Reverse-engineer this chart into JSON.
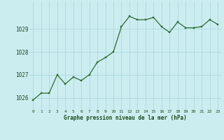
{
  "x": [
    0,
    1,
    2,
    3,
    4,
    5,
    6,
    7,
    8,
    9,
    10,
    11,
    12,
    13,
    14,
    15,
    16,
    17,
    18,
    19,
    20,
    21,
    22,
    23
  ],
  "y": [
    1025.9,
    1026.2,
    1026.2,
    1027.0,
    1026.6,
    1026.9,
    1026.75,
    1027.0,
    1027.55,
    1027.75,
    1028.0,
    1029.1,
    1029.55,
    1029.4,
    1029.4,
    1029.5,
    1029.1,
    1028.85,
    1029.3,
    1029.05,
    1029.05,
    1029.1,
    1029.4,
    1029.2
  ],
  "line_color": "#2d6a2d",
  "marker_color": "#2d6a2d",
  "bg_color": "#ccedf0",
  "grid_color": "#aad8dc",
  "title": "Graphe pression niveau de la mer (hPa)",
  "title_color": "#1a4a1a",
  "tick_color": "#1a4a1a",
  "ylim": [
    1025.5,
    1030.2
  ],
  "yticks": [
    1026,
    1027,
    1028,
    1029
  ],
  "xticks": [
    0,
    1,
    2,
    3,
    4,
    5,
    6,
    7,
    8,
    9,
    10,
    11,
    12,
    13,
    14,
    15,
    16,
    17,
    18,
    19,
    20,
    21,
    22,
    23
  ]
}
